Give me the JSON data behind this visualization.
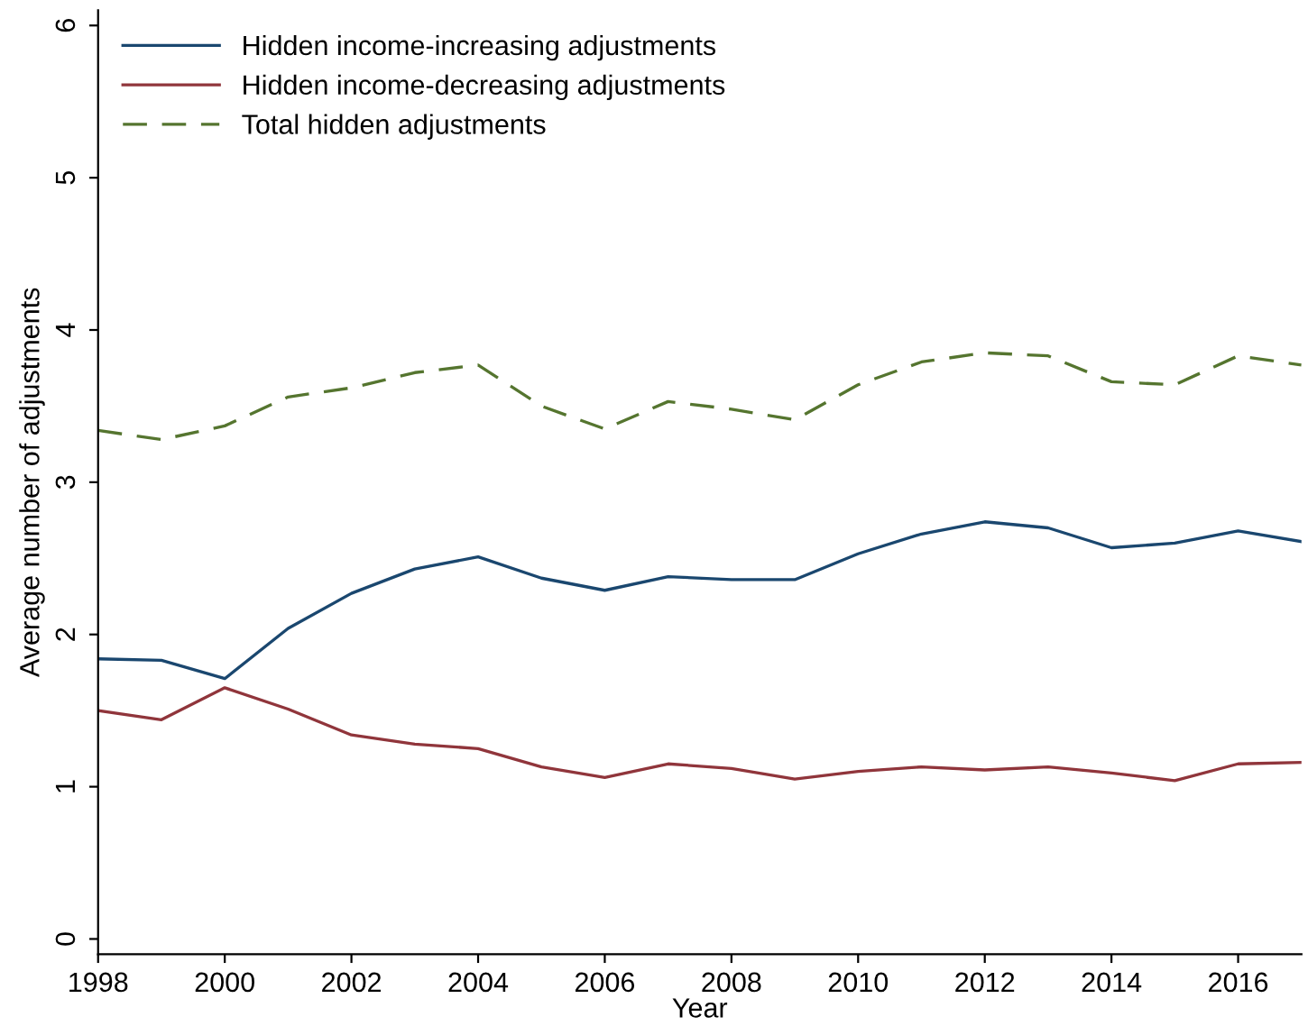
{
  "chart_data": {
    "type": "line",
    "xlabel": "Year",
    "ylabel": "Average number of adjustments",
    "x": [
      1998,
      1999,
      2000,
      2001,
      2002,
      2003,
      2004,
      2005,
      2006,
      2007,
      2008,
      2009,
      2010,
      2011,
      2012,
      2013,
      2014,
      2015,
      2016,
      2017
    ],
    "series": [
      {
        "name": "Hidden income-increasing adjustments",
        "color": "#1a476f",
        "line_style": "solid",
        "values": [
          1.84,
          1.83,
          1.71,
          2.04,
          2.27,
          2.43,
          2.51,
          2.37,
          2.29,
          2.38,
          2.36,
          2.36,
          2.53,
          2.66,
          2.74,
          2.7,
          2.57,
          2.6,
          2.68,
          2.61
        ]
      },
      {
        "name": "Hidden income-decreasing adjustments",
        "color": "#90353b",
        "line_style": "solid",
        "values": [
          1.5,
          1.44,
          1.65,
          1.51,
          1.34,
          1.28,
          1.25,
          1.13,
          1.06,
          1.15,
          1.12,
          1.05,
          1.1,
          1.13,
          1.11,
          1.13,
          1.09,
          1.04,
          1.15,
          1.16
        ]
      },
      {
        "name": "Total hidden adjustments",
        "color": "#55752f",
        "line_style": "dashed",
        "values": [
          3.34,
          3.28,
          3.37,
          3.56,
          3.62,
          3.72,
          3.77,
          3.5,
          3.35,
          3.53,
          3.48,
          3.41,
          3.64,
          3.79,
          3.85,
          3.83,
          3.66,
          3.64,
          3.83,
          3.77
        ]
      }
    ],
    "xlim": [
      1998,
      2017
    ],
    "xticks": [
      1998,
      2000,
      2002,
      2004,
      2006,
      2008,
      2010,
      2012,
      2014,
      2016
    ],
    "ylim": [
      -0.1,
      6.1
    ],
    "yticks": [
      0,
      1,
      2,
      3,
      4,
      5,
      6
    ],
    "grid": false,
    "legend": "top left"
  }
}
